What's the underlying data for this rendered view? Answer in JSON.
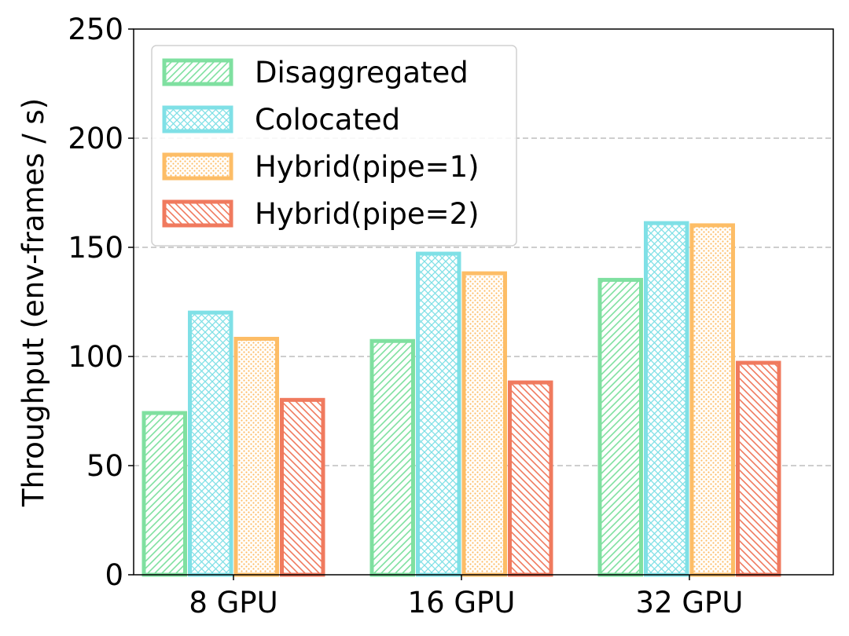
{
  "chart_data": {
    "type": "bar",
    "title": "",
    "xlabel": "",
    "ylabel": "Throughput (env-frames / s)",
    "categories": [
      "8 GPU",
      "16 GPU",
      "32 GPU"
    ],
    "ylim": [
      0,
      250
    ],
    "yticks": [
      0,
      50,
      100,
      150,
      200,
      250
    ],
    "grid": "horizontal-dashed",
    "legend_position": "top-left",
    "series": [
      {
        "name": "Disaggregated",
        "values": [
          75,
          108,
          136
        ],
        "color": "#7fe0a0",
        "hatch": "diagonal"
      },
      {
        "name": "Colocated",
        "values": [
          121,
          148,
          162
        ],
        "color": "#7fe0e6",
        "hatch": "crosshatch"
      },
      {
        "name": "Hybrid(pipe=1)",
        "values": [
          109,
          139,
          161
        ],
        "color": "#fdbd66",
        "hatch": "dots"
      },
      {
        "name": "Hybrid(pipe=2)",
        "values": [
          81,
          89,
          98
        ],
        "color": "#f07a5e",
        "hatch": "backdiagonal"
      }
    ]
  }
}
